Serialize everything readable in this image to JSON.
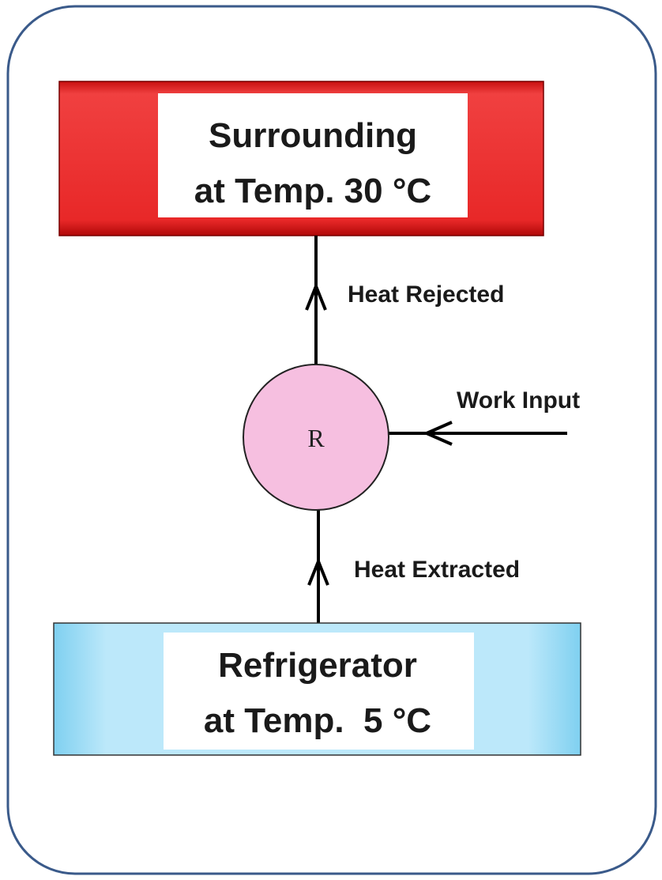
{
  "nodes": [
    {
      "lines": [
        "Surrounding",
        "at Temp. 30 °C"
      ]
    },
    {
      "label": "R"
    },
    {
      "lines": [
        "Refrigerator",
        "at Temp.  5 °C"
      ]
    }
  ],
  "edges": [
    {
      "label": "Heat Rejected"
    },
    {
      "label": "Work Input"
    },
    {
      "label": "Heat Extracted"
    }
  ]
}
